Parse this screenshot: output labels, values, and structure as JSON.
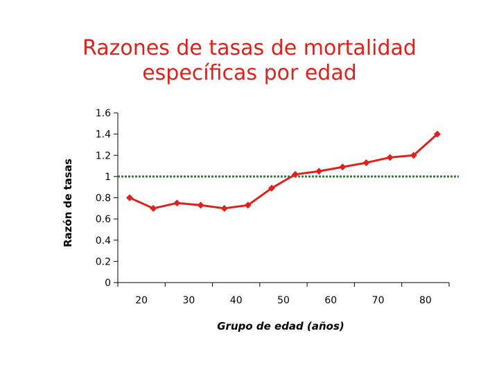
{
  "title_lines": [
    "Razones de tasas de mortalidad",
    "específicas por edad"
  ],
  "colors": {
    "title": "#e0201b",
    "series": "#e0201b",
    "reference": "#2e7d3a",
    "axis": "#000000"
  },
  "chart_data": {
    "type": "line",
    "title": "Razones de tasas de mortalidad específicas por edad",
    "xlabel": "Grupo de edad (años)",
    "ylabel": "Razón de tasas",
    "x_ticks": [
      20,
      30,
      40,
      50,
      60,
      70,
      80
    ],
    "y_ticks": [
      "0",
      "0.2",
      "0.4",
      "0.6",
      "0.8",
      "1",
      "1.2",
      "1.4",
      "1.6"
    ],
    "xlim": [
      15,
      85
    ],
    "ylim": [
      0,
      1.6
    ],
    "grid": false,
    "series": [
      {
        "x": [
          17.5,
          22.5,
          27.5,
          32.5,
          37.5,
          42.5,
          47.5,
          52.5,
          57.5,
          62.5,
          67.5,
          72.5,
          77.5,
          82.5
        ],
        "y": [
          0.8,
          0.7,
          0.75,
          0.73,
          0.7,
          0.73,
          0.89,
          1.02,
          1.05,
          1.09,
          1.13,
          1.18,
          1.2,
          1.4
        ]
      }
    ],
    "reference_line": {
      "y": 1.0,
      "style": "dotted"
    }
  }
}
